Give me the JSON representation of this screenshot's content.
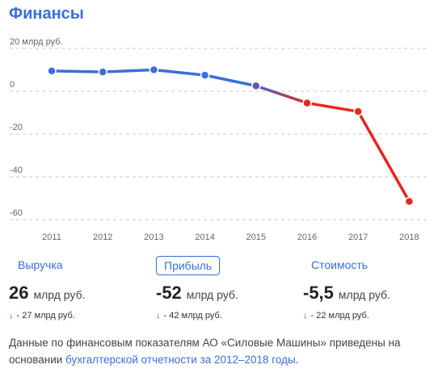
{
  "title": "Финансы",
  "chart_data": {
    "type": "line",
    "x": [
      "2011",
      "2012",
      "2013",
      "2014",
      "2015",
      "2016",
      "2017",
      "2018"
    ],
    "series": [
      {
        "values": [
          9.5,
          9.0,
          10.0,
          7.5,
          2.5,
          -5.5,
          -9.5,
          -51.5
        ]
      }
    ],
    "yticks": [
      "20 млрд руб.",
      "0",
      "-20",
      "-40",
      "-60"
    ],
    "ylim": [
      -60,
      20
    ],
    "grid": true,
    "colors": {
      "positive": "#3a6fd8",
      "negative": "#e8261f"
    }
  },
  "metrics": [
    {
      "label": "Выручка",
      "value": "26",
      "unit": "млрд руб.",
      "delta": "- 27 млрд руб."
    },
    {
      "label": "Прибыль",
      "value": "-52",
      "unit": "млрд руб.",
      "delta": "- 42 млрд руб."
    },
    {
      "label": "Стоимость",
      "value": "-5,5",
      "unit": "млрд руб.",
      "delta": "- 22 млрд руб."
    }
  ],
  "footnote": {
    "text": "Данные по финансовым показателям АО «Силовые Машины» приведены на основании ",
    "link": "бухгалтерской отчетности за 2012–2018 годы",
    "end": "."
  }
}
